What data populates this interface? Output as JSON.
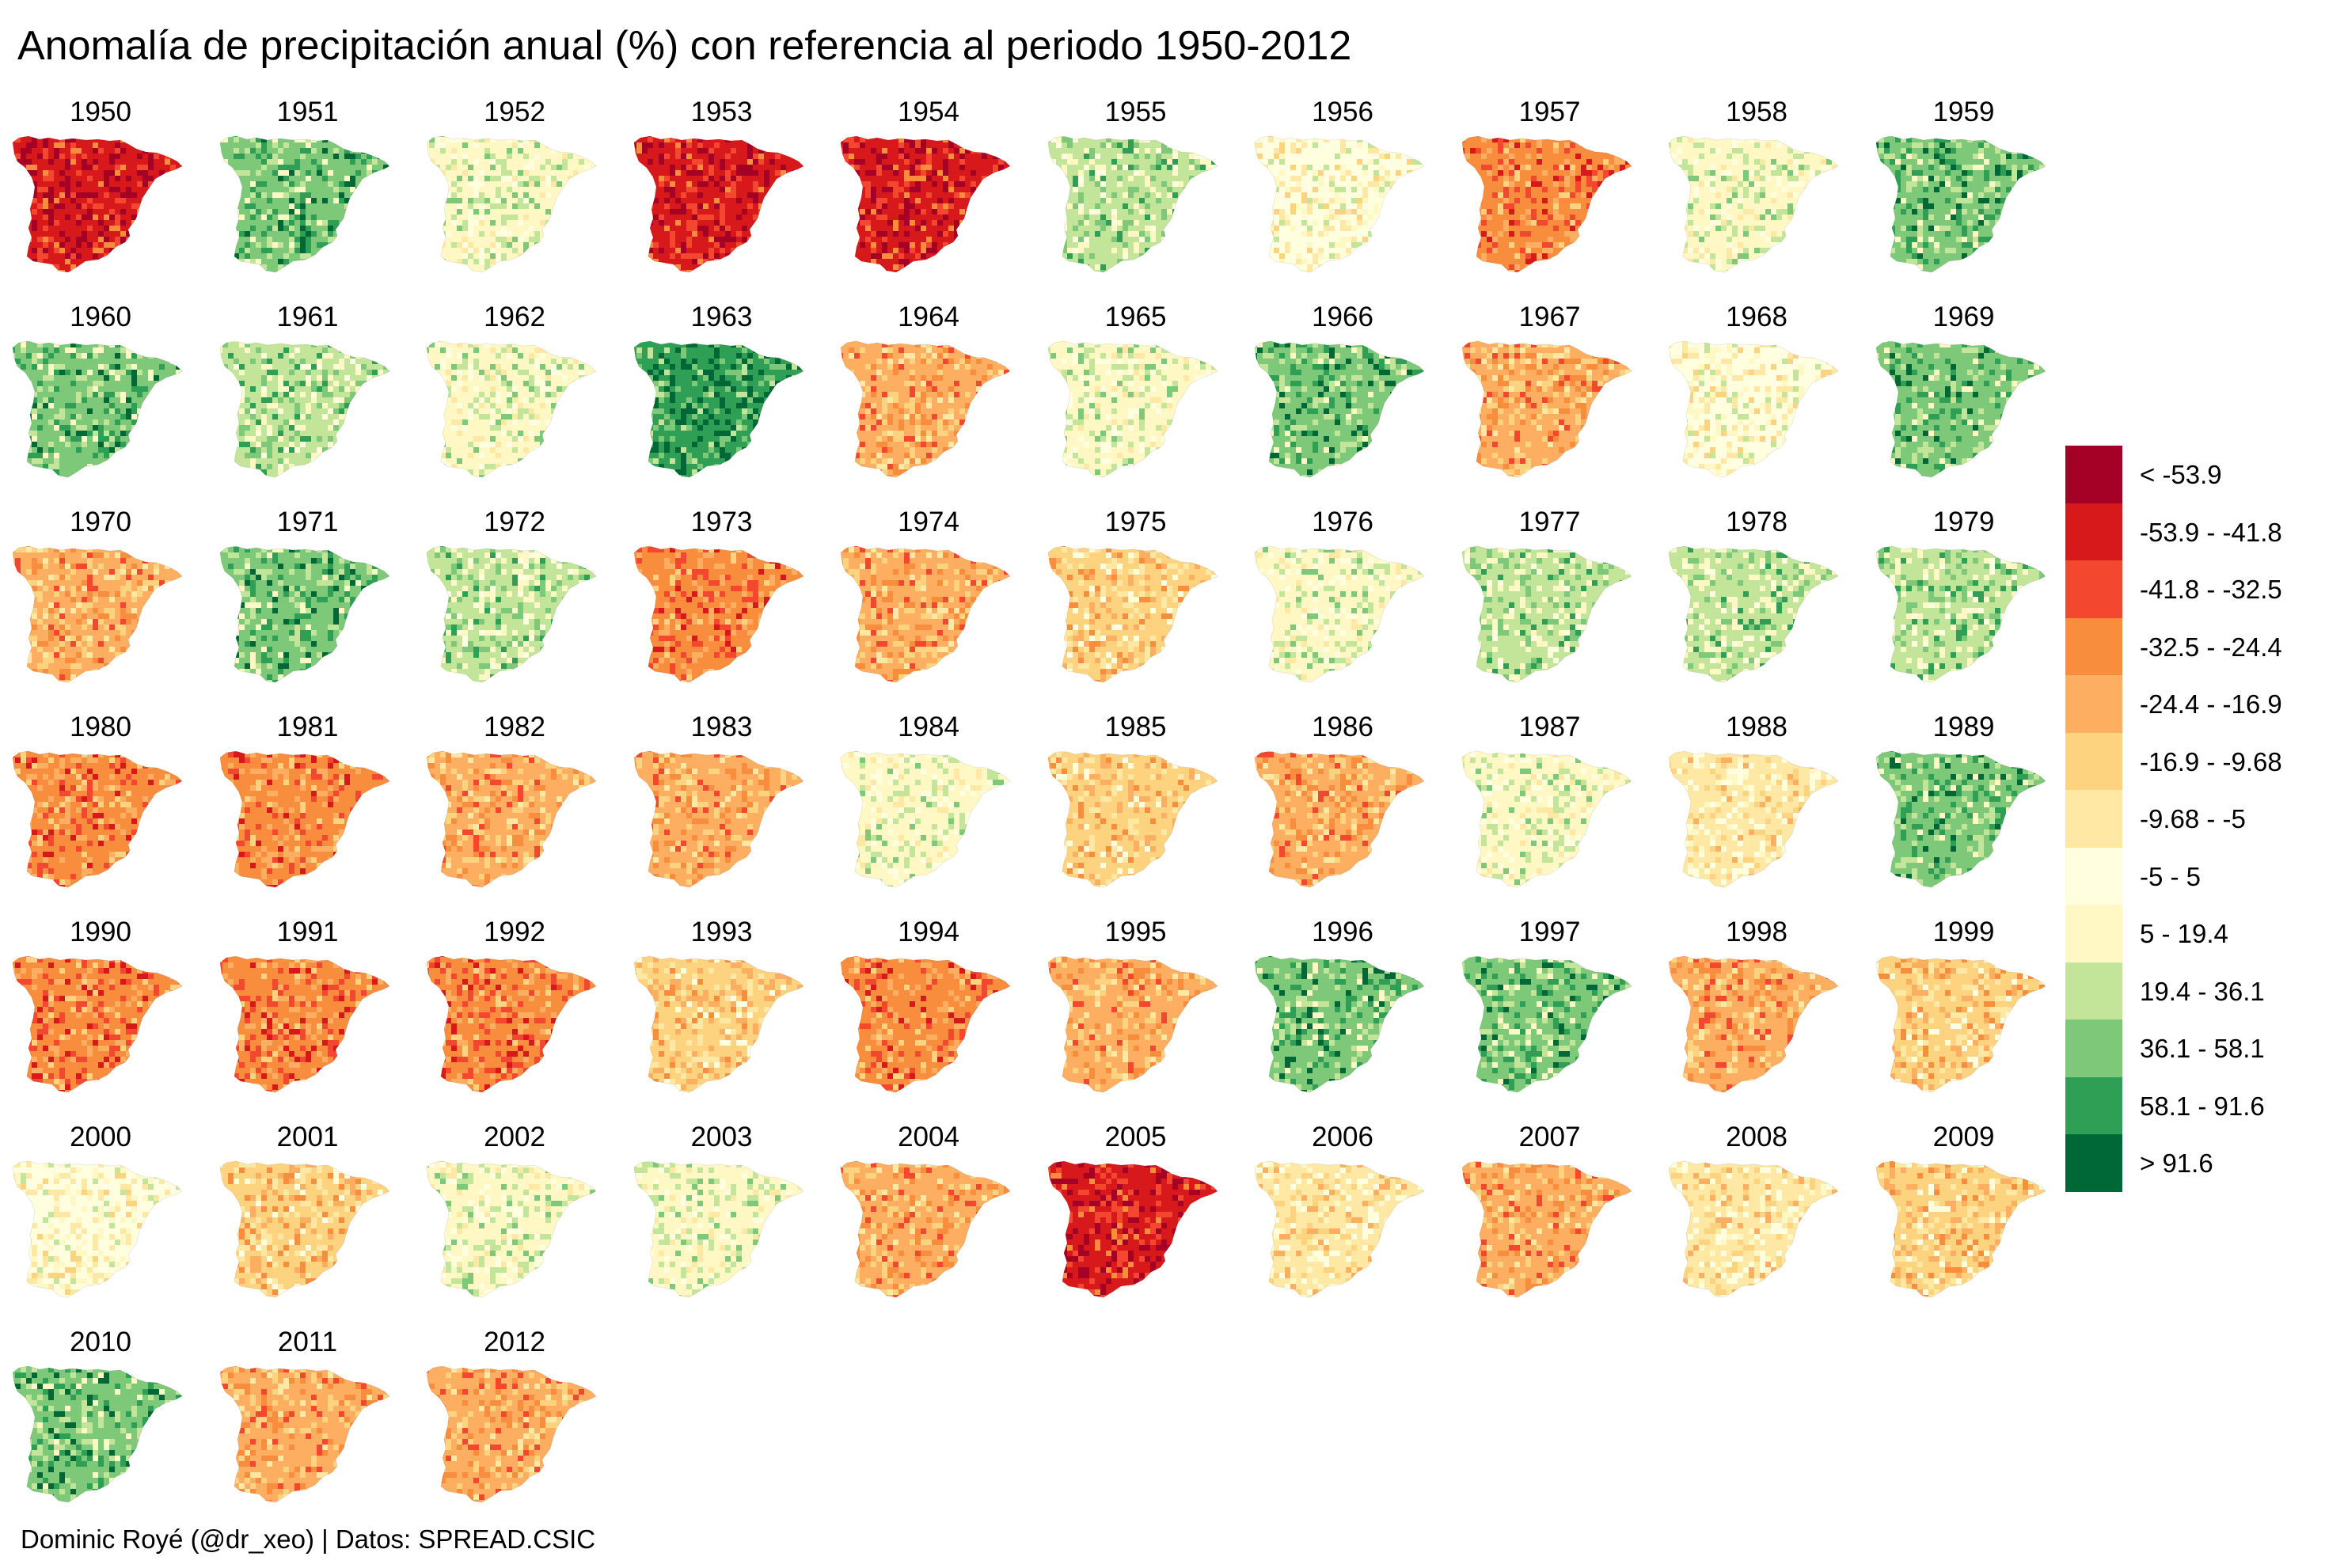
{
  "title": "Anomalía de precipitación anual (%) con referencia al periodo 1950-2012",
  "caption": "Dominic Royé (@dr_xeo) | Datos: SPREAD.CSIC",
  "map_region": "Spain (Iberian Peninsula)",
  "legend": [
    {
      "label": "< -53.9",
      "color": "#A50026"
    },
    {
      "label": "-53.9 - -41.8",
      "color": "#D7191C"
    },
    {
      "label": "-41.8 - -32.5",
      "color": "#F4472F"
    },
    {
      "label": "-32.5 - -24.4",
      "color": "#F88D3D"
    },
    {
      "label": "-24.4 - -16.9",
      "color": "#FDAE61"
    },
    {
      "label": "-16.9 - -9.68",
      "color": "#FED37F"
    },
    {
      "label": "-9.68 - -5",
      "color": "#FEE8A4"
    },
    {
      "label": "-5 - 5",
      "color": "#FFFFE0"
    },
    {
      "label": "5 - 19.4",
      "color": "#FFF8C4"
    },
    {
      "label": "19.4 - 36.1",
      "color": "#C2E59A"
    },
    {
      "label": "36.1 - 58.1",
      "color": "#7EC87A"
    },
    {
      "label": "58.1 - 91.6",
      "color": "#2E9F55"
    },
    {
      "label": "> 91.6",
      "color": "#006837"
    }
  ],
  "panels": [
    {
      "year": "1950",
      "dominant_class": 1
    },
    {
      "year": "1951",
      "dominant_class": 10
    },
    {
      "year": "1952",
      "dominant_class": 8
    },
    {
      "year": "1953",
      "dominant_class": 1
    },
    {
      "year": "1954",
      "dominant_class": 1
    },
    {
      "year": "1955",
      "dominant_class": 9
    },
    {
      "year": "1956",
      "dominant_class": 7
    },
    {
      "year": "1957",
      "dominant_class": 3
    },
    {
      "year": "1958",
      "dominant_class": 8
    },
    {
      "year": "1959",
      "dominant_class": 10
    },
    {
      "year": "1960",
      "dominant_class": 10
    },
    {
      "year": "1961",
      "dominant_class": 9
    },
    {
      "year": "1962",
      "dominant_class": 8
    },
    {
      "year": "1963",
      "dominant_class": 11
    },
    {
      "year": "1964",
      "dominant_class": 4
    },
    {
      "year": "1965",
      "dominant_class": 8
    },
    {
      "year": "1966",
      "dominant_class": 10
    },
    {
      "year": "1967",
      "dominant_class": 4
    },
    {
      "year": "1968",
      "dominant_class": 7
    },
    {
      "year": "1969",
      "dominant_class": 10
    },
    {
      "year": "1970",
      "dominant_class": 4
    },
    {
      "year": "1971",
      "dominant_class": 10
    },
    {
      "year": "1972",
      "dominant_class": 9
    },
    {
      "year": "1973",
      "dominant_class": 3
    },
    {
      "year": "1974",
      "dominant_class": 4
    },
    {
      "year": "1975",
      "dominant_class": 5
    },
    {
      "year": "1976",
      "dominant_class": 8
    },
    {
      "year": "1977",
      "dominant_class": 9
    },
    {
      "year": "1978",
      "dominant_class": 9
    },
    {
      "year": "1979",
      "dominant_class": 9
    },
    {
      "year": "1980",
      "dominant_class": 3
    },
    {
      "year": "1981",
      "dominant_class": 3
    },
    {
      "year": "1982",
      "dominant_class": 4
    },
    {
      "year": "1983",
      "dominant_class": 4
    },
    {
      "year": "1984",
      "dominant_class": 8
    },
    {
      "year": "1985",
      "dominant_class": 5
    },
    {
      "year": "1986",
      "dominant_class": 4
    },
    {
      "year": "1987",
      "dominant_class": 8
    },
    {
      "year": "1988",
      "dominant_class": 6
    },
    {
      "year": "1989",
      "dominant_class": 10
    },
    {
      "year": "1990",
      "dominant_class": 3
    },
    {
      "year": "1991",
      "dominant_class": 3
    },
    {
      "year": "1992",
      "dominant_class": 3
    },
    {
      "year": "1993",
      "dominant_class": 5
    },
    {
      "year": "1994",
      "dominant_class": 3
    },
    {
      "year": "1995",
      "dominant_class": 4
    },
    {
      "year": "1996",
      "dominant_class": 10
    },
    {
      "year": "1997",
      "dominant_class": 10
    },
    {
      "year": "1998",
      "dominant_class": 4
    },
    {
      "year": "1999",
      "dominant_class": 5
    },
    {
      "year": "2000",
      "dominant_class": 7
    },
    {
      "year": "2001",
      "dominant_class": 5
    },
    {
      "year": "2002",
      "dominant_class": 8
    },
    {
      "year": "2003",
      "dominant_class": 8
    },
    {
      "year": "2004",
      "dominant_class": 4
    },
    {
      "year": "2005",
      "dominant_class": 1
    },
    {
      "year": "2006",
      "dominant_class": 6
    },
    {
      "year": "2007",
      "dominant_class": 4
    },
    {
      "year": "2008",
      "dominant_class": 6
    },
    {
      "year": "2009",
      "dominant_class": 5
    },
    {
      "year": "2010",
      "dominant_class": 10
    },
    {
      "year": "2011",
      "dominant_class": 4
    },
    {
      "year": "2012",
      "dominant_class": 4
    }
  ]
}
